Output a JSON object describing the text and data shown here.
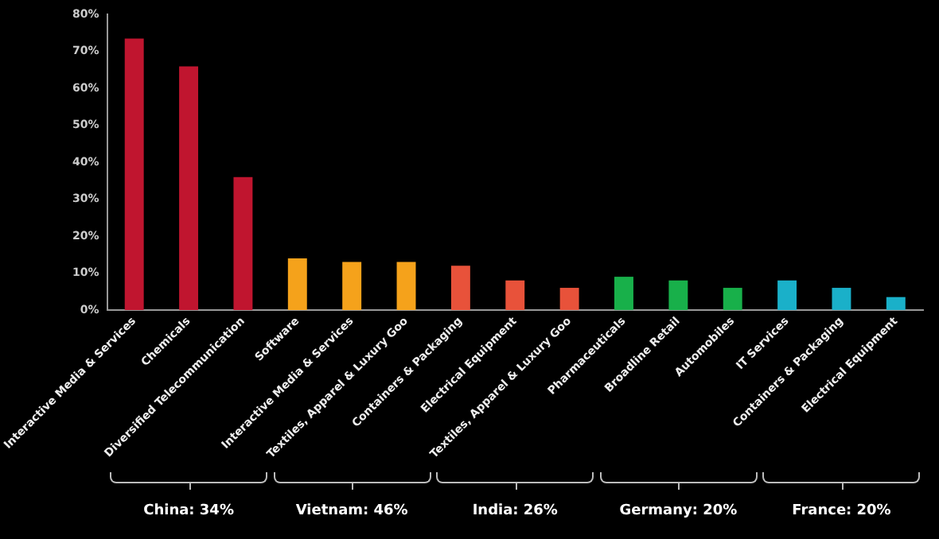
{
  "chart_data": {
    "type": "bar",
    "categories": [
      "Interactive Media & Services",
      "Chemicals",
      "Diversified Telecommunication",
      "Software",
      "Interactive Media & Services",
      "Textiles, Apparel & Luxury Goo",
      "Containers & Packaging",
      "Electrical Equipment",
      "Textiles, Apparel & Luxury Goo",
      "Pharmaceuticals",
      "Broadline Retail",
      "Automobiles",
      "IT Services",
      "Containers & Packaging",
      "Electrical Equipment"
    ],
    "values": [
      73.5,
      66,
      36,
      14,
      13,
      13,
      12,
      8,
      6,
      9,
      8,
      6,
      8,
      6,
      3.5
    ],
    "colors": [
      "#c0152f",
      "#c0152f",
      "#c0152f",
      "#f5a21b",
      "#f5a21b",
      "#f5a21b",
      "#e8523a",
      "#e8523a",
      "#e8523a",
      "#18b04a",
      "#18b04a",
      "#18b04a",
      "#1ab0c9",
      "#1ab0c9",
      "#1ab0c9"
    ],
    "ylim": [
      0,
      80
    ],
    "yticks": [
      {
        "value": 0,
        "label": "0%"
      },
      {
        "value": 10,
        "label": "10%"
      },
      {
        "value": 20,
        "label": "20%"
      },
      {
        "value": 30,
        "label": "30%"
      },
      {
        "value": 40,
        "label": "40%"
      },
      {
        "value": 50,
        "label": "50%"
      },
      {
        "value": 60,
        "label": "60%"
      },
      {
        "value": 70,
        "label": "70%"
      },
      {
        "value": 80,
        "label": "80%"
      }
    ],
    "annotations": [
      "China: 34%",
      "Vietnam: 46%",
      "India: 26%",
      "Germany: 20%",
      "France: 20%"
    ],
    "grid": false,
    "legend": false
  }
}
